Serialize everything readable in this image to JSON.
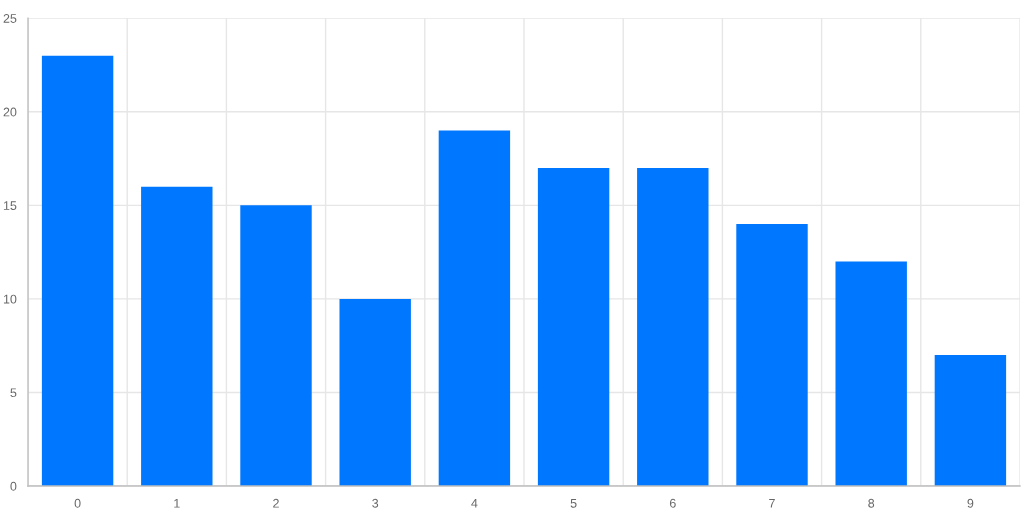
{
  "chart_data": {
    "type": "bar",
    "categories": [
      "0",
      "1",
      "2",
      "3",
      "4",
      "5",
      "6",
      "7",
      "8",
      "9"
    ],
    "values": [
      23,
      16,
      15,
      10,
      19,
      17,
      17,
      14,
      12,
      7
    ],
    "color": "#0077ff",
    "ylim": [
      0,
      25
    ],
    "yticks": [
      0,
      5,
      10,
      15,
      20,
      25
    ],
    "grid": true
  }
}
